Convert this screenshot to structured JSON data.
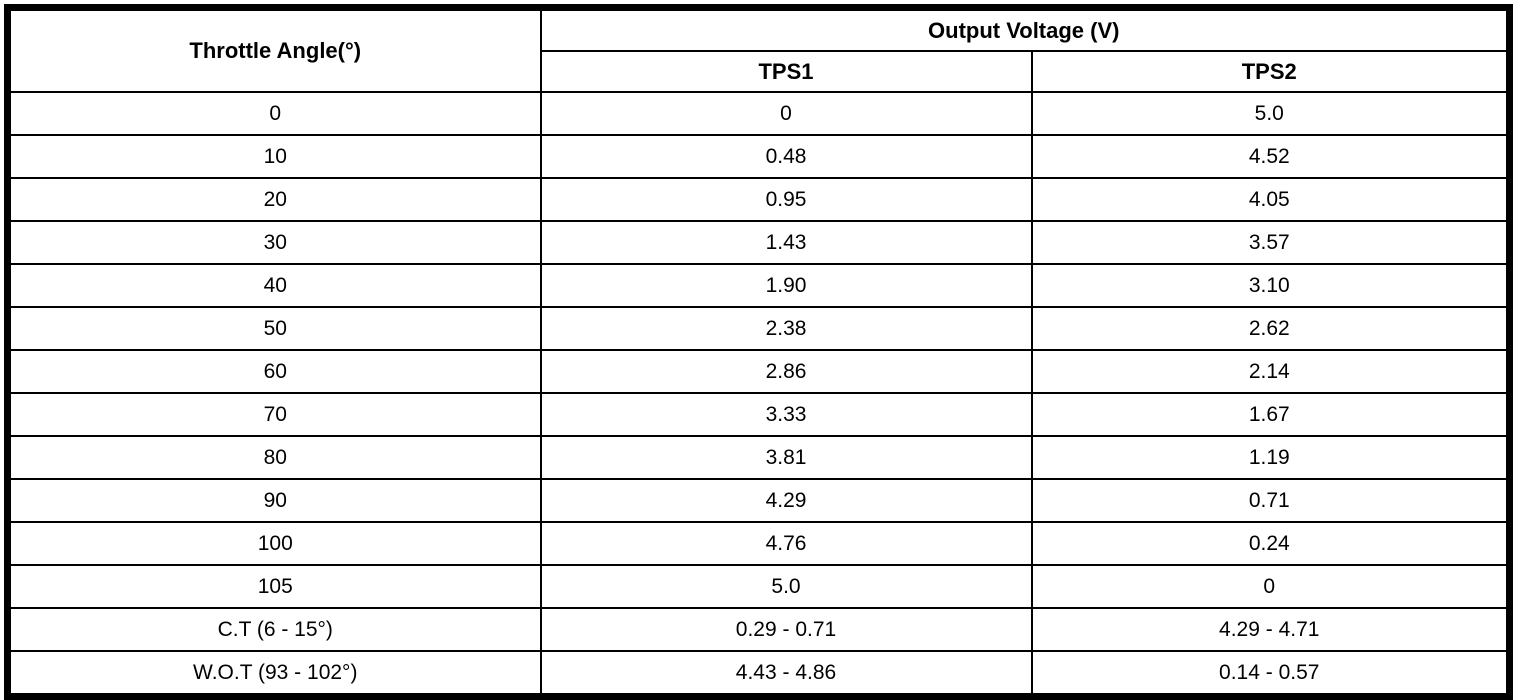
{
  "page": {
    "background_color": "#ffffff",
    "border_color": "#000000",
    "text_color": "#000000"
  },
  "table": {
    "header": {
      "throttle_angle_label": "Throttle Angle(°)",
      "output_voltage_label": "Output Voltage (V)",
      "tps1_label": "TPS1",
      "tps2_label": "TPS2"
    },
    "rows": [
      {
        "angle": "0",
        "tps1": "0",
        "tps2": "5.0"
      },
      {
        "angle": "10",
        "tps1": "0.48",
        "tps2": "4.52"
      },
      {
        "angle": "20",
        "tps1": "0.95",
        "tps2": "4.05"
      },
      {
        "angle": "30",
        "tps1": "1.43",
        "tps2": "3.57"
      },
      {
        "angle": "40",
        "tps1": "1.90",
        "tps2": "3.10"
      },
      {
        "angle": "50",
        "tps1": "2.38",
        "tps2": "2.62"
      },
      {
        "angle": "60",
        "tps1": "2.86",
        "tps2": "2.14"
      },
      {
        "angle": "70",
        "tps1": "3.33",
        "tps2": "1.67"
      },
      {
        "angle": "80",
        "tps1": "3.81",
        "tps2": "1.19"
      },
      {
        "angle": "90",
        "tps1": "4.29",
        "tps2": "0.71"
      },
      {
        "angle": "100",
        "tps1": "4.76",
        "tps2": "0.24"
      },
      {
        "angle": "105",
        "tps1": "5.0",
        "tps2": "0"
      },
      {
        "angle": "C.T (6 - 15°)",
        "tps1": "0.29 - 0.71",
        "tps2": "4.29 - 4.71"
      },
      {
        "angle": "W.O.T (93 - 102°)",
        "tps1": "4.43 - 4.86",
        "tps2": "0.14 - 0.57"
      }
    ]
  }
}
